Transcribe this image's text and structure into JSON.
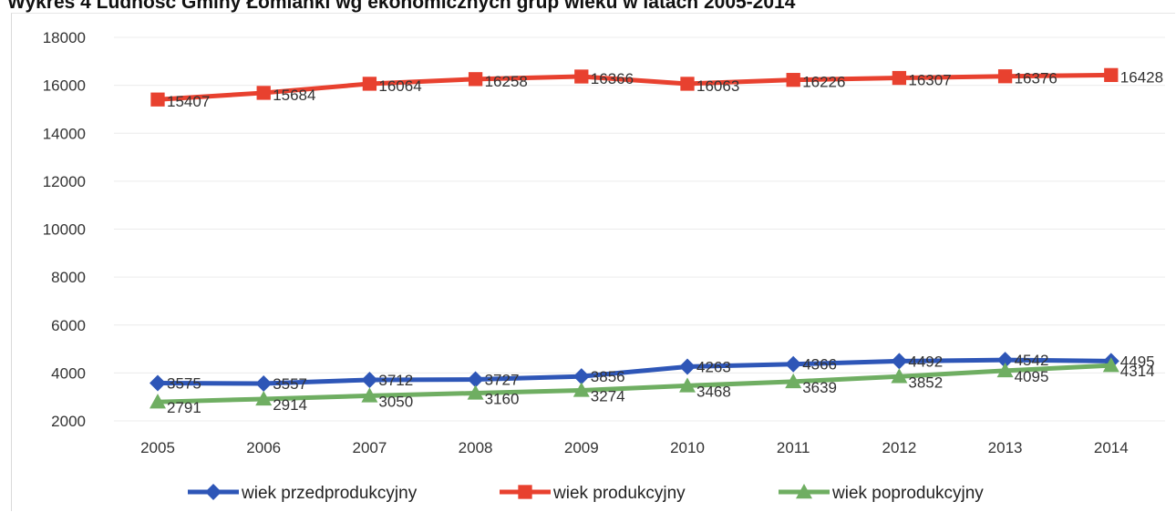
{
  "chart_data": {
    "type": "line",
    "title": "Wykres 4 Ludność Gminy Łomianki wg ekonomicznych grup wieku w latach 2005-2014",
    "categories": [
      "2005",
      "2006",
      "2007",
      "2008",
      "2009",
      "2010",
      "2011",
      "2012",
      "2013",
      "2014"
    ],
    "ylim": [
      2000,
      18000
    ],
    "yticks": [
      2000,
      4000,
      6000,
      8000,
      10000,
      12000,
      14000,
      16000,
      18000
    ],
    "grid": true,
    "legend_position": "bottom",
    "series": [
      {
        "name": "wiek przedprodukcyjny",
        "color": "#2e56b7",
        "marker": "diamond",
        "values": [
          3575,
          3557,
          3712,
          3727,
          3856,
          4263,
          4366,
          4492,
          4542,
          4495
        ]
      },
      {
        "name": "wiek produkcyjny",
        "color": "#e8412f",
        "marker": "square",
        "values": [
          15407,
          15684,
          16064,
          16258,
          16366,
          16063,
          16226,
          16307,
          16376,
          16428
        ]
      },
      {
        "name": "wiek poprodukcyjny",
        "color": "#6fae62",
        "marker": "triangle",
        "values": [
          2791,
          2914,
          3050,
          3160,
          3274,
          3468,
          3639,
          3852,
          4095,
          4314
        ]
      }
    ]
  }
}
